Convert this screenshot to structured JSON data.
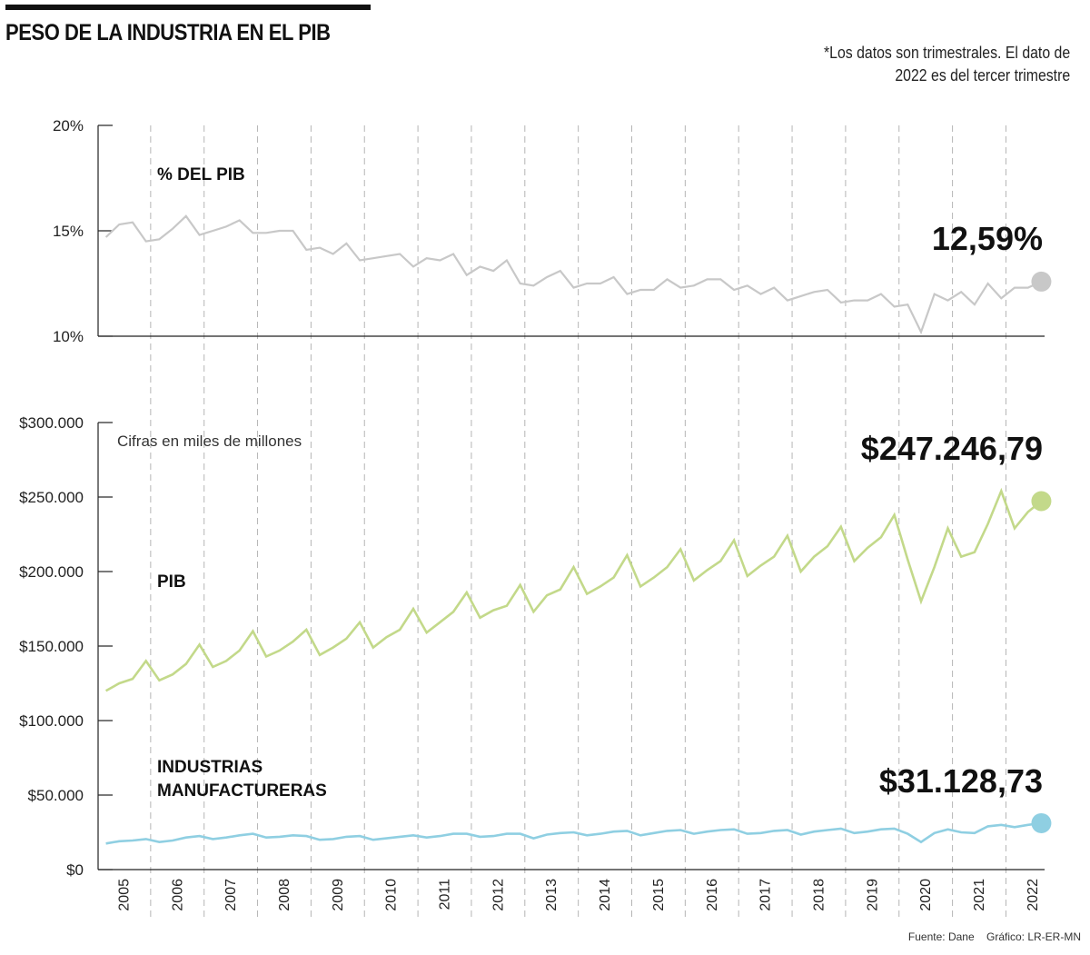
{
  "header": {
    "title": "PESO DE LA INDUSTRIA EN EL PIB",
    "note_line1": "*Los datos son trimestrales. El dato de",
    "note_line2": "2022 es del tercer trimestre"
  },
  "footer": {
    "source": "Fuente: Dane",
    "credit": "Gráfico: LR-ER-MN"
  },
  "colors": {
    "share_line": "#c8c8c8",
    "pib_line": "#c3d98a",
    "industry_line": "#8fcfe2",
    "grid_dashed": "#b5b5b5",
    "axis": "#222222"
  },
  "chart_data": [
    {
      "id": "share",
      "type": "line",
      "title": "% DEL PIB",
      "ylabel": "",
      "xlabel": "",
      "ylim": [
        10,
        20
      ],
      "yticks": [
        10,
        15,
        20
      ],
      "ytick_labels": [
        "10%",
        "15%",
        "20%"
      ],
      "grid": "vertical dashed at year boundaries",
      "end_label": "12,59%",
      "series": [
        {
          "name": "% DEL PIB",
          "values": [
            14.7,
            15.3,
            15.4,
            14.5,
            14.6,
            15.1,
            15.7,
            14.8,
            15.0,
            15.2,
            15.5,
            14.9,
            14.9,
            15.0,
            15.0,
            14.1,
            14.2,
            13.9,
            14.4,
            13.6,
            13.7,
            13.8,
            13.9,
            13.3,
            13.7,
            13.6,
            13.9,
            12.9,
            13.3,
            13.1,
            13.6,
            12.5,
            12.4,
            12.8,
            13.1,
            12.3,
            12.5,
            12.5,
            12.8,
            12.0,
            12.2,
            12.2,
            12.7,
            12.3,
            12.4,
            12.7,
            12.7,
            12.2,
            12.4,
            12.0,
            12.3,
            11.7,
            11.9,
            12.1,
            12.2,
            11.6,
            11.7,
            11.7,
            12.0,
            11.4,
            11.5,
            10.2,
            12.0,
            11.7,
            12.1,
            11.5,
            12.5,
            11.8,
            12.3,
            12.3,
            12.59
          ]
        }
      ]
    },
    {
      "id": "amounts",
      "type": "line",
      "title": "",
      "subtitle": "Cifras en miles de millones",
      "ylabel": "",
      "xlabel": "",
      "ylim": [
        0,
        300000
      ],
      "yticks": [
        0,
        50000,
        100000,
        150000,
        200000,
        250000,
        300000
      ],
      "ytick_labels": [
        "$0",
        "$50.000",
        "$100.000",
        "$150.000",
        "$200.000",
        "$250.000",
        "$300.000"
      ],
      "grid": "vertical dashed at year boundaries",
      "series": [
        {
          "name": "PIB",
          "end_label": "$247.246,79",
          "values": [
            120000,
            125000,
            128000,
            140000,
            127000,
            131000,
            138000,
            151000,
            136000,
            140000,
            147000,
            160000,
            143000,
            147000,
            153000,
            161000,
            144000,
            149000,
            155000,
            166000,
            149000,
            156000,
            161000,
            175000,
            159000,
            166000,
            173000,
            186000,
            169000,
            174000,
            177000,
            191000,
            173000,
            184000,
            188000,
            203000,
            185000,
            190000,
            196000,
            211000,
            190000,
            196000,
            203000,
            215000,
            194000,
            201000,
            207000,
            221000,
            197000,
            204000,
            210000,
            224000,
            200000,
            210000,
            217000,
            230000,
            207000,
            216000,
            223000,
            238000,
            208000,
            180000,
            203000,
            229000,
            210000,
            213000,
            232000,
            254000,
            229000,
            240000,
            247246.79
          ]
        },
        {
          "name": "INDUSTRIAS MANUFACTURERAS",
          "end_label": "$31.128,73",
          "values": [
            17500,
            19000,
            19500,
            20500,
            18500,
            19500,
            21500,
            22500,
            20500,
            21500,
            23000,
            24000,
            21500,
            22000,
            23000,
            22500,
            20000,
            20500,
            22000,
            22500,
            20000,
            21000,
            22000,
            23000,
            21500,
            22500,
            24000,
            24000,
            22000,
            22500,
            24000,
            24000,
            21000,
            23500,
            24500,
            25000,
            23000,
            24000,
            25500,
            26000,
            23000,
            24500,
            26000,
            26500,
            24000,
            25500,
            26500,
            27000,
            24000,
            24500,
            26000,
            26500,
            23500,
            25500,
            26500,
            27500,
            24500,
            25500,
            27000,
            27500,
            24000,
            18500,
            24500,
            27000,
            25000,
            24500,
            29000,
            30000,
            28500,
            30000,
            31128.73
          ]
        }
      ]
    }
  ],
  "x_axis": {
    "frequency": "quarterly",
    "start": "2005-Q1",
    "end": "2022-Q3",
    "year_labels": [
      "2005",
      "2006",
      "2007",
      "2008",
      "2009",
      "2010",
      "2011",
      "2012",
      "2013",
      "2014",
      "2015",
      "2016",
      "2017",
      "2018",
      "2019",
      "2020",
      "2021",
      "2022"
    ]
  },
  "labels": {
    "share_series": "% DEL PIB",
    "pib_series": "PIB",
    "industry_line1": "INDUSTRIAS",
    "industry_line2": "MANUFACTURERAS",
    "amount_note": "Cifras en miles de millones",
    "share_end": "12,59%",
    "pib_end": "$247.246,79",
    "industry_end": "$31.128,73"
  }
}
